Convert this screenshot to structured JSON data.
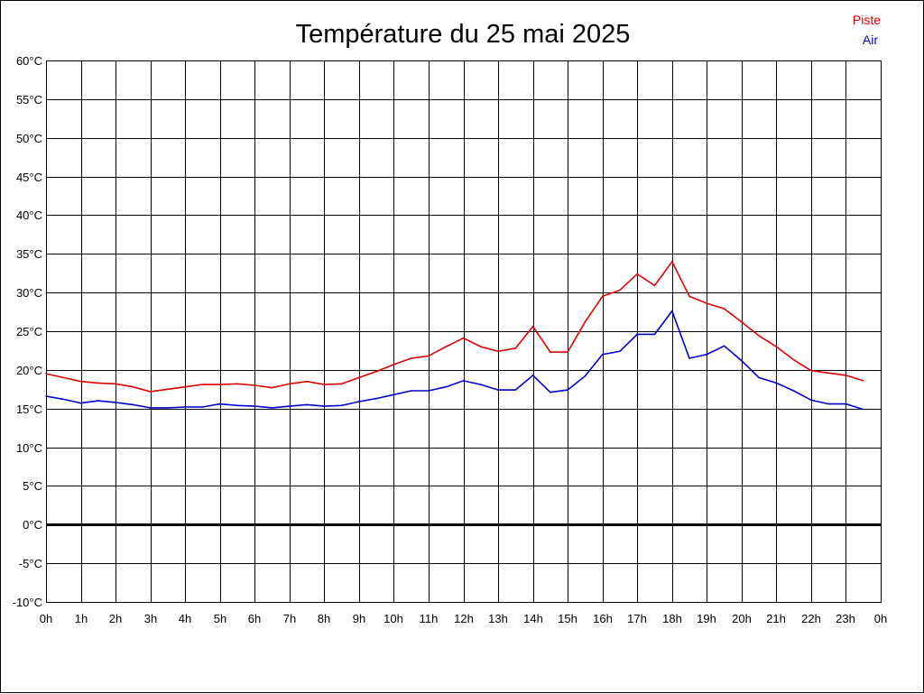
{
  "chart_data": {
    "type": "line",
    "title": "Température du 25 mai 2025",
    "xlabel": "",
    "ylabel": "",
    "y_unit": "°C",
    "ylim": [
      -10,
      60
    ],
    "y_ticks": [
      -10,
      -5,
      0,
      5,
      10,
      15,
      20,
      25,
      30,
      35,
      40,
      45,
      50,
      55,
      60
    ],
    "y_tick_labels": [
      "-10°C",
      "-5°C",
      "0°C",
      "5°C",
      "10°C",
      "15°C",
      "20°C",
      "25°C",
      "30°C",
      "35°C",
      "40°C",
      "45°C",
      "50°C",
      "55°C",
      "60°C"
    ],
    "x_range_hours": [
      0,
      24
    ],
    "x_ticks": [
      0,
      1,
      2,
      3,
      4,
      5,
      6,
      7,
      8,
      9,
      10,
      11,
      12,
      13,
      14,
      15,
      16,
      17,
      18,
      19,
      20,
      21,
      22,
      23,
      24
    ],
    "x_tick_labels": [
      "0h",
      "1h",
      "2h",
      "3h",
      "4h",
      "5h",
      "6h",
      "7h",
      "8h",
      "9h",
      "10h",
      "11h",
      "12h",
      "13h",
      "14h",
      "15h",
      "16h",
      "17h",
      "18h",
      "19h",
      "20h",
      "21h",
      "22h",
      "23h",
      "0h"
    ],
    "grid": true,
    "zero_line": true,
    "legend_position": "top-right",
    "x": [
      0,
      0.5,
      1,
      1.5,
      2,
      2.5,
      3,
      3.5,
      4,
      4.5,
      5,
      5.5,
      6,
      6.5,
      7,
      7.5,
      8,
      8.5,
      9,
      9.5,
      10,
      10.5,
      11,
      11.5,
      12,
      12.5,
      13,
      13.5,
      14,
      14.5,
      15,
      15.5,
      16,
      16.5,
      17,
      17.5,
      18,
      18.5,
      19,
      19.5,
      20,
      20.5,
      21,
      21.5,
      22,
      22.5,
      23,
      23.5
    ],
    "series": [
      {
        "name": "Piste",
        "color": "#dd0000",
        "values": [
          19.5,
          19.0,
          18.5,
          18.3,
          18.2,
          17.8,
          17.2,
          17.5,
          17.8,
          18.1,
          18.1,
          18.2,
          18.0,
          17.7,
          18.2,
          18.5,
          18.1,
          18.2,
          19.0,
          19.8,
          20.7,
          21.5,
          21.8,
          23.0,
          24.1,
          23.0,
          22.4,
          22.8,
          25.6,
          22.3,
          22.3,
          26.2,
          29.5,
          30.3,
          32.4,
          30.9,
          34.0,
          29.5,
          28.6,
          27.9,
          26.2,
          24.4,
          23.0,
          21.3,
          19.9,
          19.6,
          19.3,
          18.6
        ]
      },
      {
        "name": "Air",
        "color": "#0000cc",
        "values": [
          16.6,
          16.2,
          15.7,
          16.0,
          15.8,
          15.5,
          15.1,
          15.1,
          15.2,
          15.2,
          15.6,
          15.4,
          15.3,
          15.1,
          15.3,
          15.5,
          15.3,
          15.4,
          15.9,
          16.3,
          16.8,
          17.3,
          17.3,
          17.8,
          18.6,
          18.1,
          17.4,
          17.4,
          19.3,
          17.1,
          17.4,
          19.2,
          22.0,
          22.4,
          24.6,
          24.6,
          27.6,
          21.5,
          22.0,
          23.1,
          21.2,
          19.0,
          18.3,
          17.3,
          16.1,
          15.6,
          15.6,
          14.9
        ]
      }
    ]
  }
}
